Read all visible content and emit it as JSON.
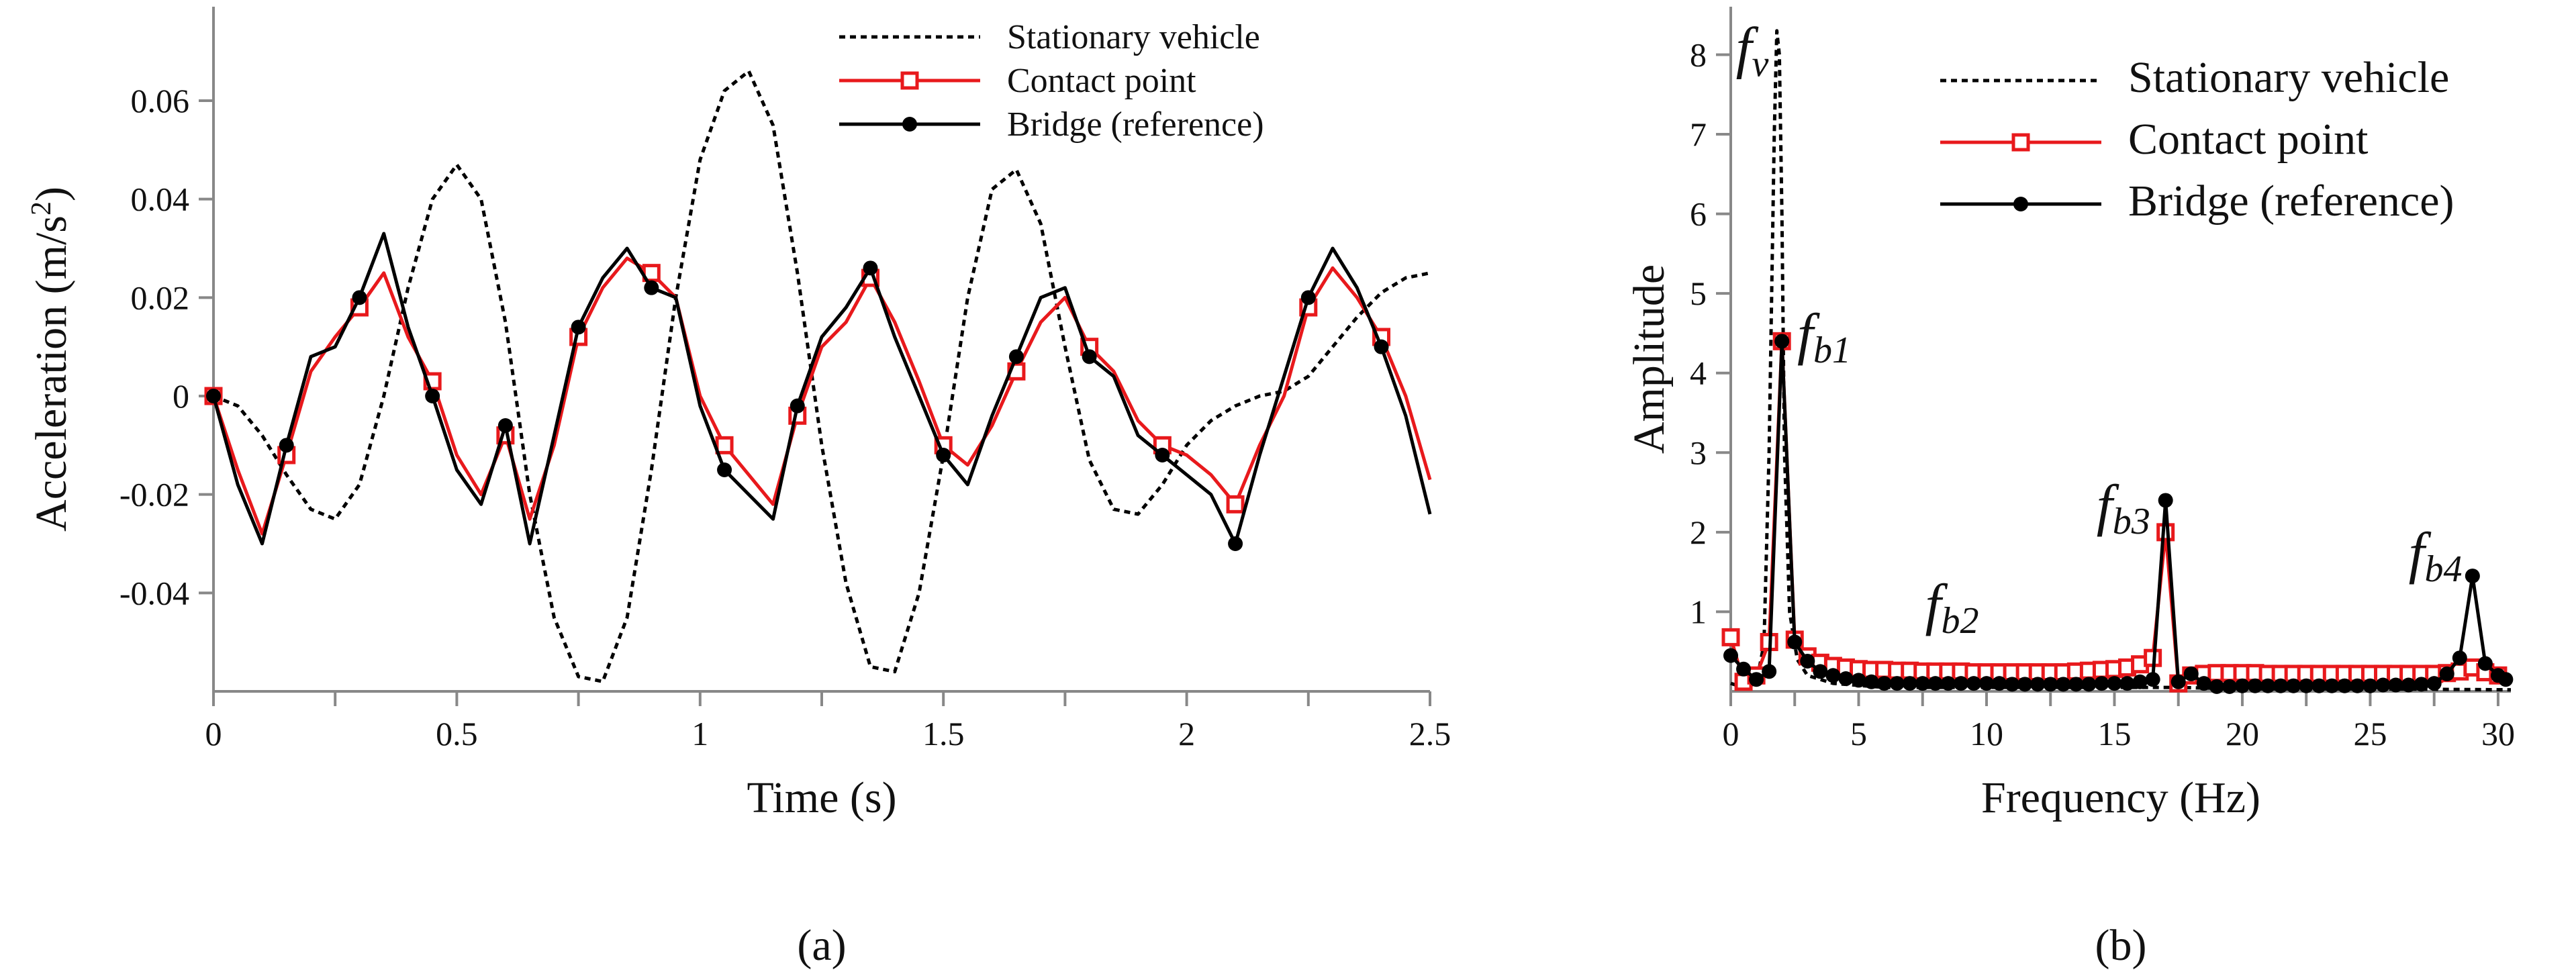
{
  "chart_data": [
    {
      "id": "a",
      "type": "line",
      "panel_label": "(a)",
      "xlabel": "Time (s)",
      "ylabel_main": "Acceleration (m/s",
      "ylabel_sup": "2",
      "ylabel_close": ")",
      "xlim": [
        0,
        2.5
      ],
      "ylim": [
        -0.06,
        0.075
      ],
      "xticks": [
        0,
        0.5,
        1,
        1.5,
        2,
        2.5
      ],
      "xtick_labels": [
        "0",
        "0.5",
        "1",
        "1.5",
        "2",
        "2.5"
      ],
      "yticks": [
        -0.04,
        -0.02,
        0,
        0.02,
        0.04,
        0.06
      ],
      "ytick_labels": [
        "-0.04",
        "-0.02",
        "0",
        "0.02",
        "0.04",
        "0.06"
      ],
      "legend": [
        "Stationary vehicle",
        "Contact point",
        "Bridge (reference)"
      ],
      "series": [
        {
          "name": "Stationary vehicle",
          "style": "dotted",
          "color": "#000000",
          "x": [
            0,
            0.05,
            0.1,
            0.15,
            0.2,
            0.25,
            0.3,
            0.35,
            0.4,
            0.45,
            0.5,
            0.55,
            0.6,
            0.65,
            0.7,
            0.75,
            0.8,
            0.85,
            0.9,
            0.95,
            1.0,
            1.05,
            1.1,
            1.15,
            1.2,
            1.25,
            1.3,
            1.35,
            1.4,
            1.45,
            1.5,
            1.55,
            1.6,
            1.65,
            1.7,
            1.75,
            1.8,
            1.85,
            1.9,
            1.95,
            2.0,
            2.05,
            2.1,
            2.15,
            2.2,
            2.25,
            2.3,
            2.35,
            2.4,
            2.45,
            2.5
          ],
          "y": [
            0,
            -0.002,
            -0.008,
            -0.016,
            -0.023,
            -0.025,
            -0.018,
            0.0,
            0.022,
            0.04,
            0.047,
            0.04,
            0.015,
            -0.02,
            -0.045,
            -0.057,
            -0.058,
            -0.045,
            -0.015,
            0.02,
            0.048,
            0.062,
            0.066,
            0.055,
            0.025,
            -0.01,
            -0.038,
            -0.055,
            -0.056,
            -0.04,
            -0.012,
            0.02,
            0.042,
            0.046,
            0.035,
            0.01,
            -0.013,
            -0.023,
            -0.024,
            -0.018,
            -0.01,
            -0.005,
            -0.002,
            0.0,
            0.001,
            0.004,
            0.01,
            0.016,
            0.021,
            0.024,
            0.025
          ]
        },
        {
          "name": "Contact point",
          "style": "solid-square",
          "color": "#e8191c",
          "x": [
            0,
            0.05,
            0.1,
            0.15,
            0.2,
            0.25,
            0.3,
            0.35,
            0.4,
            0.45,
            0.5,
            0.55,
            0.6,
            0.65,
            0.7,
            0.75,
            0.8,
            0.85,
            0.9,
            0.95,
            1.0,
            1.05,
            1.1,
            1.15,
            1.2,
            1.25,
            1.3,
            1.35,
            1.4,
            1.45,
            1.5,
            1.55,
            1.6,
            1.65,
            1.7,
            1.75,
            1.8,
            1.85,
            1.9,
            1.95,
            2.0,
            2.05,
            2.1,
            2.15,
            2.2,
            2.25,
            2.3,
            2.35,
            2.4,
            2.45,
            2.5
          ],
          "y": [
            0,
            -0.015,
            -0.028,
            -0.012,
            0.005,
            0.012,
            0.018,
            0.025,
            0.012,
            0.003,
            -0.012,
            -0.02,
            -0.008,
            -0.025,
            -0.01,
            0.012,
            0.022,
            0.028,
            0.025,
            0.02,
            0.0,
            -0.01,
            -0.016,
            -0.022,
            -0.004,
            0.01,
            0.015,
            0.024,
            0.015,
            0.003,
            -0.01,
            -0.014,
            -0.006,
            0.005,
            0.015,
            0.02,
            0.01,
            0.005,
            -0.005,
            -0.01,
            -0.012,
            -0.016,
            -0.022,
            -0.01,
            0.0,
            0.018,
            0.026,
            0.02,
            0.012,
            0.0,
            -0.017
          ]
        },
        {
          "name": "Bridge (reference)",
          "style": "solid-dot",
          "color": "#000000",
          "x": [
            0,
            0.05,
            0.1,
            0.15,
            0.2,
            0.25,
            0.3,
            0.35,
            0.4,
            0.45,
            0.5,
            0.55,
            0.6,
            0.65,
            0.7,
            0.75,
            0.8,
            0.85,
            0.9,
            0.95,
            1.0,
            1.05,
            1.1,
            1.15,
            1.2,
            1.25,
            1.3,
            1.35,
            1.4,
            1.45,
            1.5,
            1.55,
            1.6,
            1.65,
            1.7,
            1.75,
            1.8,
            1.85,
            1.9,
            1.95,
            2.0,
            2.05,
            2.1,
            2.15,
            2.2,
            2.25,
            2.3,
            2.35,
            2.4,
            2.45,
            2.5
          ],
          "y": [
            0,
            -0.018,
            -0.03,
            -0.01,
            0.008,
            0.01,
            0.02,
            0.033,
            0.014,
            0.0,
            -0.015,
            -0.022,
            -0.006,
            -0.03,
            -0.008,
            0.014,
            0.024,
            0.03,
            0.022,
            0.02,
            -0.002,
            -0.015,
            -0.02,
            -0.025,
            -0.002,
            0.012,
            0.018,
            0.026,
            0.012,
            0.0,
            -0.012,
            -0.018,
            -0.004,
            0.008,
            0.02,
            0.022,
            0.008,
            0.004,
            -0.008,
            -0.012,
            -0.016,
            -0.02,
            -0.03,
            -0.012,
            0.004,
            0.02,
            0.03,
            0.022,
            0.01,
            -0.004,
            -0.024
          ]
        }
      ]
    },
    {
      "id": "b",
      "type": "line",
      "panel_label": "(b)",
      "xlabel": "Frequency (Hz)",
      "ylabel": "Amplitude",
      "xlim": [
        0,
        30.5
      ],
      "ylim": [
        0,
        8.35
      ],
      "xticks": [
        0,
        5,
        10,
        15,
        20,
        25,
        30
      ],
      "xtick_labels": [
        "0",
        "5",
        "10",
        "15",
        "20",
        "25",
        "30"
      ],
      "yticks": [
        1,
        2,
        3,
        4,
        5,
        6,
        7,
        8
      ],
      "ytick_labels": [
        "1",
        "2",
        "3",
        "4",
        "5",
        "6",
        "7",
        "8"
      ],
      "legend": [
        "Stationary vehicle",
        "Contact point",
        "Bridge (reference)"
      ],
      "annotations": [
        {
          "main": "f",
          "sub": "v",
          "x": 0.2,
          "y": 7.85
        },
        {
          "main": "f",
          "sub": "b1",
          "x": 2.6,
          "y": 4.25
        },
        {
          "main": "f",
          "sub": "b2",
          "x": 7.6,
          "y": 0.85
        },
        {
          "main": "f",
          "sub": "b3",
          "x": 14.3,
          "y": 2.1
        },
        {
          "main": "f",
          "sub": "b4",
          "x": 26.5,
          "y": 1.5
        }
      ],
      "series": [
        {
          "name": "Stationary vehicle",
          "style": "dotted",
          "color": "#000000",
          "x": [
            0,
            0.5,
            1.0,
            1.3,
            1.5,
            1.7,
            1.8,
            1.9,
            2.0,
            2.1,
            2.3,
            2.6,
            3.0,
            4.0,
            6.0,
            10.0,
            15.0,
            17.5,
            20.0,
            25.0,
            30.5
          ],
          "y": [
            0.1,
            0.05,
            0.1,
            0.6,
            3.0,
            7.0,
            8.3,
            8.0,
            6.0,
            3.0,
            1.0,
            0.4,
            0.2,
            0.1,
            0.05,
            0.05,
            0.05,
            0.05,
            0.03,
            0.03,
            0.02
          ]
        },
        {
          "name": "Contact point",
          "style": "solid-square",
          "color": "#e8191c",
          "x": [
            0,
            0.5,
            1.0,
            1.5,
            2.0,
            2.5,
            3.0,
            3.5,
            4.0,
            4.5,
            5.0,
            5.5,
            6.0,
            6.5,
            7.0,
            7.5,
            8.0,
            8.5,
            9.0,
            9.5,
            10.0,
            10.5,
            11.0,
            11.5,
            12.0,
            12.5,
            13.0,
            13.5,
            14.0,
            14.5,
            15.0,
            15.5,
            16.0,
            16.5,
            17.0,
            17.5,
            18.0,
            18.5,
            19.0,
            19.5,
            20.0,
            20.5,
            21.0,
            21.5,
            22.0,
            22.5,
            23.0,
            23.5,
            24.0,
            24.5,
            25.0,
            25.5,
            26.0,
            26.5,
            27.0,
            27.5,
            28.0,
            28.5,
            29.0,
            29.5,
            30.0
          ],
          "y": [
            0.68,
            0.12,
            0.2,
            0.62,
            4.4,
            0.65,
            0.44,
            0.36,
            0.32,
            0.3,
            0.28,
            0.27,
            0.27,
            0.26,
            0.26,
            0.25,
            0.25,
            0.25,
            0.25,
            0.24,
            0.24,
            0.24,
            0.24,
            0.24,
            0.24,
            0.24,
            0.24,
            0.25,
            0.26,
            0.27,
            0.28,
            0.3,
            0.34,
            0.42,
            2.0,
            0.1,
            0.2,
            0.22,
            0.23,
            0.23,
            0.23,
            0.23,
            0.22,
            0.22,
            0.22,
            0.22,
            0.22,
            0.22,
            0.22,
            0.22,
            0.22,
            0.22,
            0.22,
            0.22,
            0.22,
            0.22,
            0.23,
            0.25,
            0.3,
            0.24,
            0.2
          ]
        },
        {
          "name": "Bridge (reference)",
          "style": "solid-dot",
          "color": "#000000",
          "x": [
            0,
            0.5,
            1.0,
            1.5,
            2.0,
            2.5,
            3.0,
            3.5,
            4.0,
            4.5,
            5.0,
            5.5,
            6.0,
            6.5,
            7.0,
            7.5,
            8.0,
            8.5,
            9.0,
            9.5,
            10.0,
            10.5,
            11.0,
            11.5,
            12.0,
            12.5,
            13.0,
            13.5,
            14.0,
            14.5,
            15.0,
            15.5,
            16.0,
            16.5,
            17.0,
            17.5,
            18.0,
            18.5,
            19.0,
            19.5,
            20.0,
            20.5,
            21.0,
            21.5,
            22.0,
            22.5,
            23.0,
            23.5,
            24.0,
            24.5,
            25.0,
            25.5,
            26.0,
            26.5,
            27.0,
            27.5,
            28.0,
            28.5,
            29.0,
            29.5,
            30.0,
            30.3
          ],
          "y": [
            0.45,
            0.28,
            0.15,
            0.25,
            4.4,
            0.62,
            0.38,
            0.25,
            0.2,
            0.16,
            0.14,
            0.12,
            0.1,
            0.1,
            0.1,
            0.1,
            0.1,
            0.1,
            0.1,
            0.1,
            0.1,
            0.1,
            0.09,
            0.09,
            0.09,
            0.09,
            0.09,
            0.09,
            0.09,
            0.1,
            0.1,
            0.1,
            0.12,
            0.15,
            2.4,
            0.12,
            0.22,
            0.1,
            0.06,
            0.06,
            0.07,
            0.07,
            0.07,
            0.07,
            0.07,
            0.07,
            0.07,
            0.07,
            0.07,
            0.07,
            0.07,
            0.08,
            0.08,
            0.08,
            0.09,
            0.1,
            0.22,
            0.42,
            1.45,
            0.35,
            0.2,
            0.15
          ]
        }
      ]
    }
  ]
}
